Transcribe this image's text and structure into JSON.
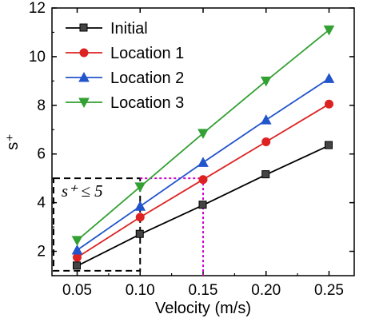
{
  "chart_data": {
    "type": "line",
    "xlabel": "Velocity (m/s)",
    "ylabel": "s⁺",
    "x": [
      0.05,
      0.1,
      0.15,
      0.2,
      0.25
    ],
    "xlim": [
      0.03,
      0.27
    ],
    "ylim": [
      1,
      12
    ],
    "xticks": [
      "0.05",
      "0.10",
      "0.15",
      "0.20",
      "0.25"
    ],
    "yticks": [
      "2",
      "4",
      "6",
      "8",
      "10",
      "12"
    ],
    "legend_position": "top-left",
    "series": [
      {
        "name": "Initial",
        "color": "#000000",
        "marker": "square",
        "values": [
          1.4,
          2.7,
          3.9,
          5.15,
          6.35
        ]
      },
      {
        "name": "Location 1",
        "color": "#dd2222",
        "marker": "circle",
        "values": [
          1.75,
          3.4,
          4.95,
          6.5,
          8.05
        ]
      },
      {
        "name": "Location 2",
        "color": "#2255cc",
        "marker": "triangle-up",
        "values": [
          2.05,
          3.85,
          5.65,
          7.4,
          9.1
        ]
      },
      {
        "name": "Location 3",
        "color": "#33a033",
        "marker": "triangle-down",
        "values": [
          2.45,
          4.65,
          6.85,
          9.0,
          11.1
        ]
      }
    ],
    "annotations": {
      "region_label": "s⁺ ≤ 5",
      "region_x": [
        0.03,
        0.1
      ],
      "region_y": [
        1.2,
        5.0
      ],
      "guide_point": {
        "x": 0.15,
        "y": 5.0
      },
      "box_color": "#000000",
      "guide_color": "#cc00cc"
    }
  }
}
